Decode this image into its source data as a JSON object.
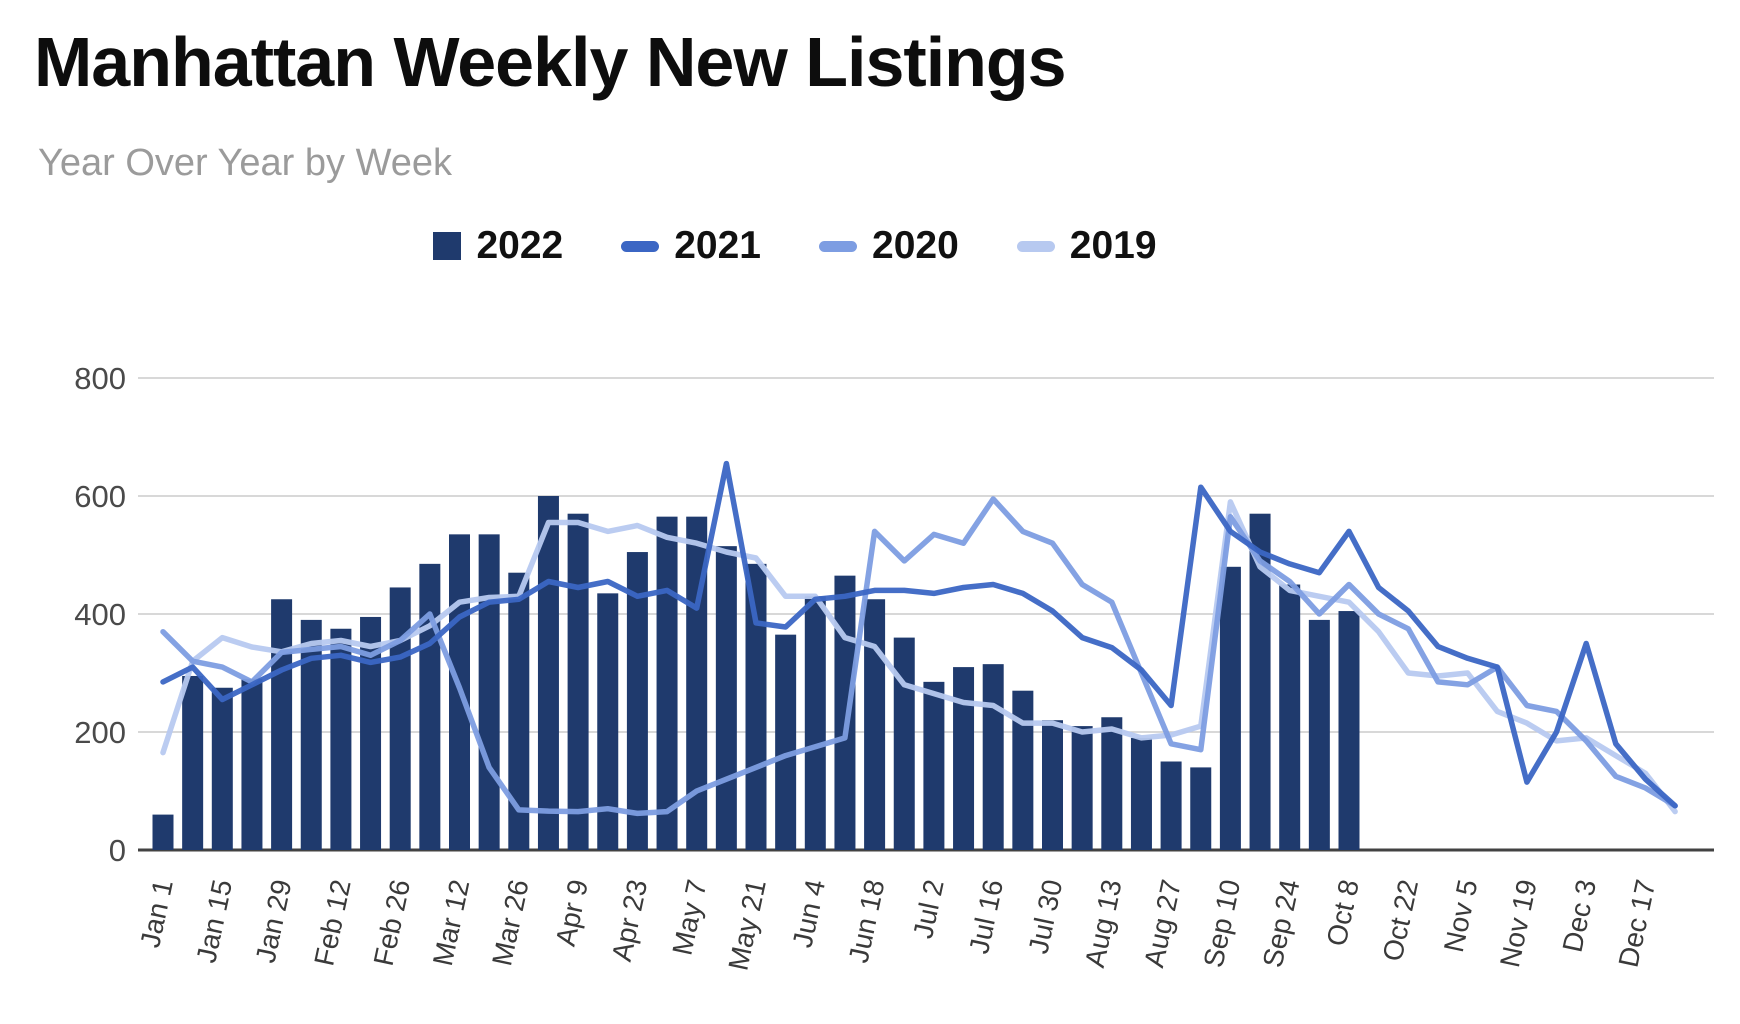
{
  "chart_data": {
    "type": "bar",
    "title": "Manhattan Weekly New Listings",
    "subtitle": "Year Over Year by Week",
    "legend": {
      "position": "top",
      "labels": [
        "2022",
        "2021",
        "2020",
        "2019"
      ]
    },
    "ylim": [
      0,
      800
    ],
    "y_axis": {
      "ticks": [
        800,
        600,
        400,
        200,
        0
      ],
      "gridlines": true
    },
    "x_axis": {
      "label_every": 2,
      "tick_rotation_deg": -78,
      "shown_tick_labels": [
        "Jan 1",
        "Jan 15",
        "Jan 29",
        "Feb 12",
        "Feb 26",
        "Mar 12",
        "Mar 26",
        "Apr 9",
        "Apr 23",
        "May 7",
        "May 21",
        "Jun 4",
        "Jun 18",
        "Jul 2",
        "Jul 16",
        "Jul 30",
        "Aug 13",
        "Aug 27",
        "Sep 10",
        "Sep 24",
        "Oct 8",
        "Oct 22",
        "Nov 5",
        "Nov 19",
        "Dec 3",
        "Dec 17"
      ]
    },
    "categories": [
      "Jan 1",
      "Jan 8",
      "Jan 15",
      "Jan 22",
      "Jan 29",
      "Feb 5",
      "Feb 12",
      "Feb 19",
      "Feb 26",
      "Mar 5",
      "Mar 12",
      "Mar 19",
      "Mar 26",
      "Apr 2",
      "Apr 9",
      "Apr 16",
      "Apr 23",
      "Apr 30",
      "May 7",
      "May 14",
      "May 21",
      "May 28",
      "Jun 4",
      "Jun 11",
      "Jun 18",
      "Jun 25",
      "Jul 2",
      "Jul 9",
      "Jul 16",
      "Jul 23",
      "Jul 30",
      "Aug 6",
      "Aug 13",
      "Aug 20",
      "Aug 27",
      "Sep 3",
      "Sep 10",
      "Sep 17",
      "Sep 24",
      "Oct 1",
      "Oct 8",
      "Oct 15",
      "Oct 22",
      "Oct 29",
      "Nov 5",
      "Nov 12",
      "Nov 19",
      "Nov 26",
      "Dec 3",
      "Dec 10",
      "Dec 17",
      "Dec 24"
    ],
    "series": [
      {
        "name": "2022",
        "type": "bar",
        "color": "#1f3a6d",
        "values": [
          60,
          295,
          275,
          290,
          425,
          390,
          375,
          395,
          445,
          485,
          535,
          535,
          470,
          600,
          570,
          435,
          505,
          565,
          565,
          515,
          485,
          365,
          430,
          465,
          425,
          360,
          285,
          310,
          315,
          270,
          220,
          210,
          225,
          190,
          150,
          140,
          480,
          570,
          450,
          390,
          405,
          null,
          null,
          null,
          null,
          null,
          null,
          null,
          null,
          null,
          null,
          null
        ]
      },
      {
        "name": "2021",
        "type": "line",
        "color": "#3b66c4",
        "values": [
          285,
          310,
          255,
          280,
          305,
          325,
          330,
          318,
          327,
          350,
          395,
          420,
          425,
          455,
          445,
          455,
          430,
          440,
          410,
          655,
          385,
          378,
          425,
          430,
          440,
          440,
          435,
          445,
          450,
          435,
          405,
          360,
          343,
          305,
          245,
          615,
          540,
          505,
          485,
          470,
          540,
          445,
          405,
          345,
          325,
          310,
          115,
          200,
          350,
          180,
          120,
          75
        ]
      },
      {
        "name": "2020",
        "type": "line",
        "color": "#7d9de2",
        "values": [
          370,
          320,
          310,
          285,
          335,
          340,
          345,
          330,
          355,
          400,
          275,
          140,
          68,
          66,
          65,
          70,
          62,
          65,
          100,
          120,
          140,
          160,
          175,
          190,
          540,
          490,
          535,
          520,
          595,
          540,
          520,
          450,
          420,
          300,
          180,
          170,
          565,
          490,
          455,
          400,
          450,
          400,
          375,
          285,
          280,
          310,
          245,
          235,
          185,
          125,
          105,
          75
        ]
      },
      {
        "name": "2019",
        "type": "line",
        "color": "#b7c9f0",
        "values": [
          165,
          320,
          360,
          344,
          336,
          350,
          355,
          345,
          355,
          380,
          420,
          428,
          430,
          555,
          555,
          540,
          550,
          530,
          520,
          505,
          495,
          430,
          430,
          360,
          345,
          280,
          265,
          250,
          245,
          215,
          215,
          200,
          205,
          190,
          195,
          210,
          590,
          480,
          440,
          430,
          420,
          370,
          300,
          295,
          300,
          235,
          215,
          185,
          190,
          160,
          130,
          65
        ]
      }
    ]
  }
}
